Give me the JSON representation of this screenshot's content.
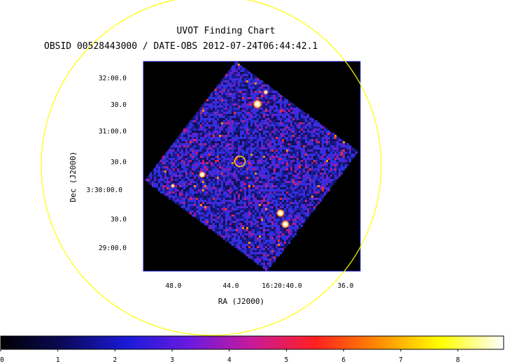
{
  "chart_data": {
    "type": "heatmap",
    "title": "UVOT Finding Chart",
    "subtitle": "OBSID 00528443000 / DATE-OBS 2012-07-24T06:44:42.1",
    "xlabel": "RA (J2000)",
    "ylabel": "Dec (J2000)",
    "x_ticks": [
      "48.0",
      "44.0",
      "16:20:40.0",
      "36.0"
    ],
    "y_ticks": [
      "32:00.0",
      "30.0",
      "31:00.0",
      "30.0",
      "3:30:00.0",
      "30.0",
      "29:00.0"
    ],
    "colorbar": {
      "ticks": [
        "0",
        "1",
        "2",
        "3",
        "4",
        "5",
        "6",
        "7",
        "8"
      ],
      "range": [
        0,
        8.8
      ],
      "colormap": [
        "#000000",
        "#0a0a5a",
        "#1a1ad8",
        "#6a1ae0",
        "#c81a9a",
        "#ff2020",
        "#ff8a00",
        "#ffff00",
        "#ffffff"
      ]
    },
    "overlays": [
      {
        "type": "circle",
        "name": "large-yellow-circle",
        "color": "#ffff00"
      },
      {
        "type": "circle",
        "name": "target-marker-circle",
        "color": "#ffd700"
      }
    ],
    "sources": [
      {
        "name": "star-a",
        "brightness": 1.0
      },
      {
        "name": "star-b",
        "brightness": 0.9
      },
      {
        "name": "star-c",
        "brightness": 0.9
      },
      {
        "name": "star-d",
        "brightness": 0.85
      },
      {
        "name": "star-e",
        "brightness": 0.75
      },
      {
        "name": "star-f",
        "brightness": 0.7
      }
    ],
    "colors": {
      "background": "#000000",
      "field_noise": "#2a2ac8",
      "frame": "#1a1acc",
      "yellow": "#ffff00"
    }
  }
}
